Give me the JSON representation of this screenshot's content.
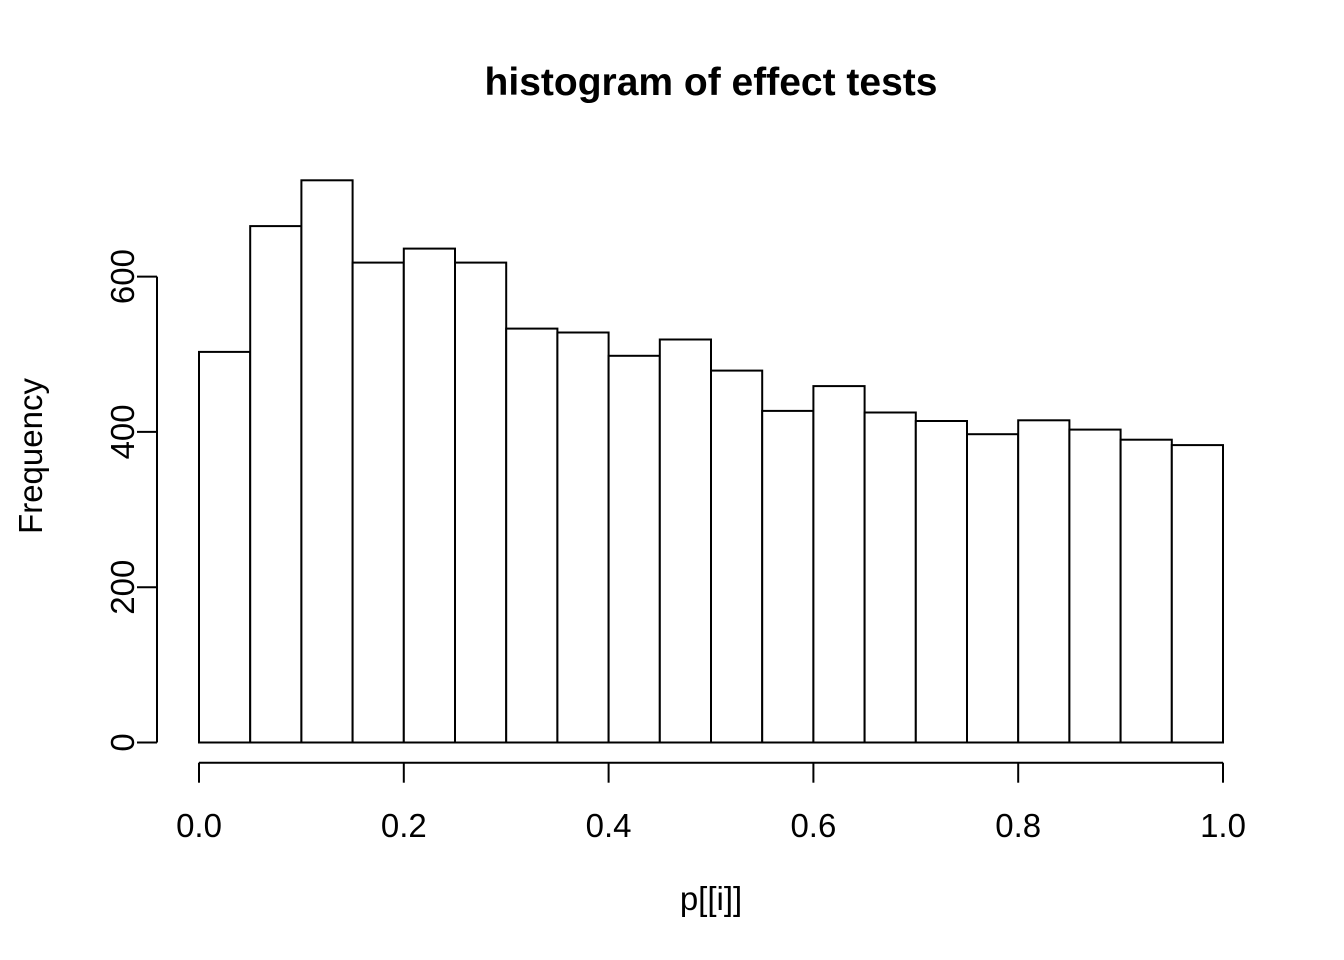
{
  "figure": {
    "background_color": "#ffffff",
    "foreground_color": "#000000"
  },
  "chart_data": {
    "type": "bar",
    "subtype": "histogram",
    "title": "histogram of effect tests",
    "xlabel": "p[[i]]",
    "ylabel": "Frequency",
    "bin_start": 0.0,
    "bin_width": 0.05,
    "counts": [
      503,
      665,
      724,
      618,
      636,
      618,
      533,
      528,
      498,
      519,
      479,
      427,
      459,
      425,
      414,
      397,
      415,
      403,
      390,
      383
    ],
    "xlim": [
      0.0,
      1.0
    ],
    "ylim": [
      0,
      724
    ],
    "x_ticks": [
      0.0,
      0.2,
      0.4,
      0.6,
      0.8,
      1.0
    ],
    "x_tick_labels": [
      "0.0",
      "0.2",
      "0.4",
      "0.6",
      "0.8",
      "1.0"
    ],
    "y_ticks": [
      0,
      200,
      400,
      600
    ],
    "y_tick_labels": [
      "0",
      "200",
      "400",
      "600"
    ],
    "grid": false,
    "legend": null,
    "bar_fill": "#ffffff",
    "bar_stroke": "#000000",
    "axis_color": "#000000"
  }
}
